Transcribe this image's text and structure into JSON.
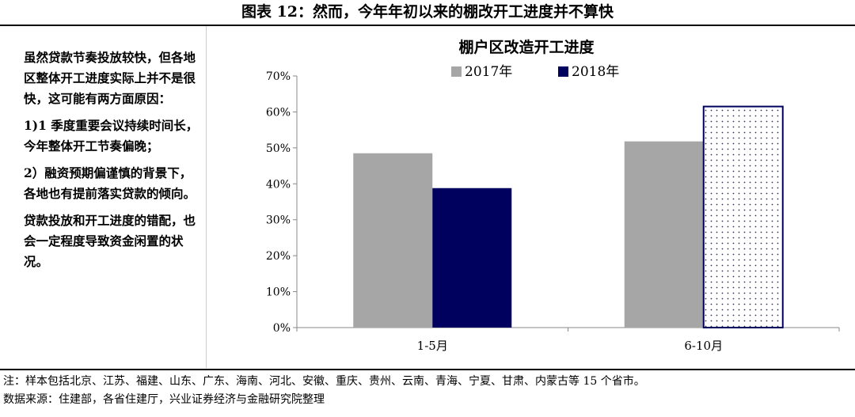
{
  "figure_title": "图表 12：然而，今年年初以来的棚改开工进度并不算快",
  "notes": [
    "虽然贷款节奏投放较快，但各地区整体开工进度实际上并不是很快，这可能有两方面原因：",
    "1)1 季度重要会议持续时间长，今年整体开工节奏偏晚；",
    "2）融资预期偏谨慎的背景下，各地也有提前落实贷款的倾向。",
    "贷款投放和开工进度的错配，也会一定程度导致资金闲置的状况。"
  ],
  "footnote": "注：样本包括北京、江苏、福建、山东、广东、海南、河北、安徽、重庆、贵州、云南、青海、宁夏、甘肃、内蒙古等 15 个省市。",
  "source": "数据来源：住建部，各省住建厅，兴业证券经济与金融研究院整理",
  "chart_data": {
    "type": "bar",
    "title": "棚户区改造开工进度",
    "categories": [
      "1-5月",
      "6-10月"
    ],
    "series": [
      {
        "name": "2017年",
        "values": [
          48.5,
          51.8
        ],
        "color": "#a6a6a6"
      },
      {
        "name": "2018年",
        "values": [
          38.8,
          61.5
        ],
        "color": "#00005e"
      }
    ],
    "ylim": [
      0,
      70
    ],
    "yticks": [
      "0%",
      "10%",
      "20%",
      "30%",
      "40%",
      "50%",
      "60%",
      "70%"
    ],
    "legend_position": "top",
    "grid": false,
    "note": "2018年 6-10月 bar drawn with white dotted fill and navy outline"
  }
}
